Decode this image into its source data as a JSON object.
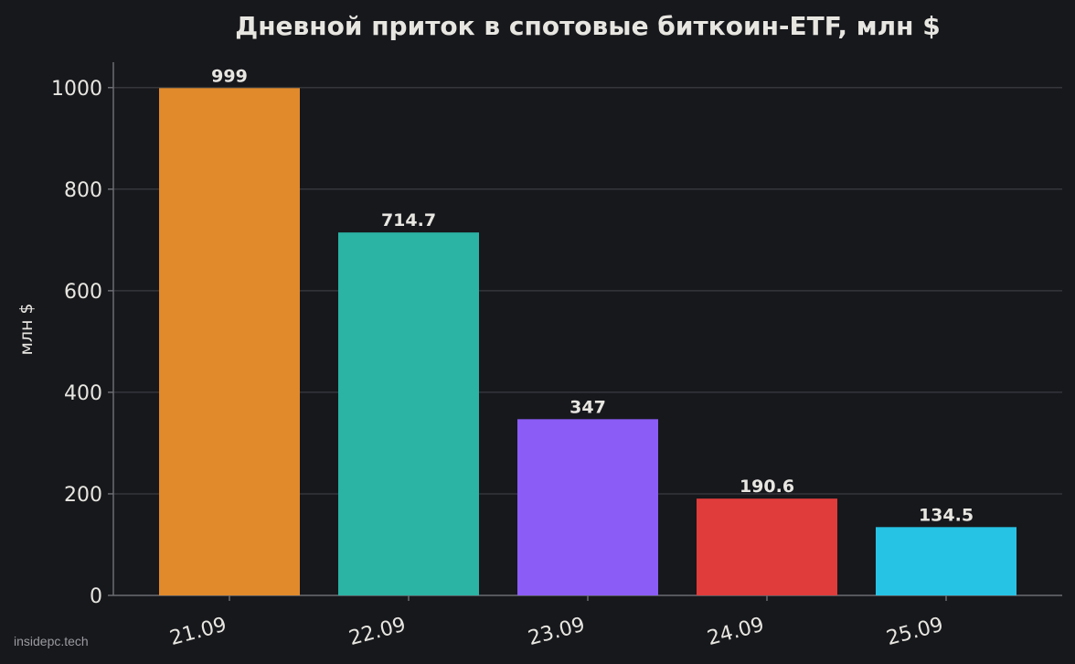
{
  "watermark": "insidepc.tech",
  "colors": {
    "background": "#17181c",
    "grid": "#34363c",
    "axis": "#6a6c72",
    "text": "#e8e6e1"
  },
  "chart_data": {
    "type": "bar",
    "title": "Дневной приток в спотовые биткоин-ETF, млн $",
    "xlabel": "",
    "ylabel": "млн $",
    "categories": [
      "21.09",
      "22.09",
      "23.09",
      "24.09",
      "25.09"
    ],
    "values": [
      999,
      714.7,
      347,
      190.6,
      134.5
    ],
    "data_labels": [
      "999",
      "714.7",
      "347",
      "190.6",
      "134.5"
    ],
    "bar_colors": [
      "#e08a2c",
      "#2bb3a4",
      "#8b5cf6",
      "#e03c3c",
      "#27c3e4"
    ],
    "yticks": [
      0,
      200,
      400,
      600,
      800,
      1000
    ],
    "ylim": [
      0,
      1050
    ],
    "grid": true,
    "legend": "none"
  }
}
